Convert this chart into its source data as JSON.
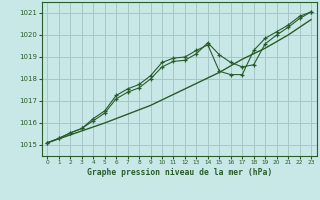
{
  "title": "Graphe pression niveau de la mer (hPa)",
  "bg_color": "#c8e8e8",
  "grid_color": "#a8c8c8",
  "line_color": "#2a5c2a",
  "xlim": [
    -0.5,
    23.5
  ],
  "ylim": [
    1014.5,
    1021.5
  ],
  "yticks": [
    1015,
    1016,
    1017,
    1018,
    1019,
    1020,
    1021
  ],
  "xticks": [
    0,
    1,
    2,
    3,
    4,
    5,
    6,
    7,
    8,
    9,
    10,
    11,
    12,
    13,
    14,
    15,
    16,
    17,
    18,
    19,
    20,
    21,
    22,
    23
  ],
  "series1": {
    "x": [
      0,
      1,
      2,
      3,
      4,
      5,
      6,
      7,
      8,
      9,
      10,
      11,
      12,
      13,
      14,
      15,
      16,
      17,
      18,
      19,
      20,
      21,
      22,
      23
    ],
    "y": [
      1015.1,
      1015.28,
      1015.46,
      1015.64,
      1015.82,
      1016.0,
      1016.2,
      1016.4,
      1016.6,
      1016.8,
      1017.05,
      1017.3,
      1017.55,
      1017.8,
      1018.05,
      1018.3,
      1018.6,
      1018.9,
      1019.15,
      1019.4,
      1019.7,
      1020.0,
      1020.35,
      1020.7
    ]
  },
  "series2": {
    "x": [
      0,
      1,
      2,
      3,
      4,
      5,
      6,
      7,
      8,
      9,
      10,
      11,
      12,
      13,
      14,
      15,
      16,
      17,
      18,
      19,
      20,
      21,
      22,
      23
    ],
    "y": [
      1015.1,
      1015.3,
      1015.55,
      1015.75,
      1016.2,
      1016.55,
      1017.25,
      1017.55,
      1017.75,
      1018.15,
      1018.75,
      1018.95,
      1019.0,
      1019.3,
      1019.55,
      1018.35,
      1018.2,
      1018.2,
      1019.3,
      1019.85,
      1020.15,
      1020.45,
      1020.85,
      1021.05
    ]
  },
  "series3": {
    "x": [
      0,
      1,
      2,
      3,
      4,
      5,
      6,
      7,
      8,
      9,
      10,
      11,
      12,
      13,
      14,
      15,
      16,
      17,
      18,
      19,
      20,
      21,
      22,
      23
    ],
    "y": [
      1015.1,
      1015.3,
      1015.55,
      1015.75,
      1016.1,
      1016.45,
      1017.1,
      1017.4,
      1017.6,
      1018.0,
      1018.55,
      1018.8,
      1018.85,
      1019.15,
      1019.65,
      1019.1,
      1018.75,
      1018.55,
      1018.65,
      1019.6,
      1020.0,
      1020.35,
      1020.75,
      1021.05
    ]
  }
}
